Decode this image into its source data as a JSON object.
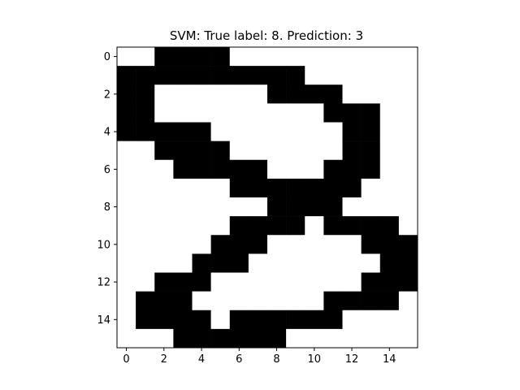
{
  "chart_data": {
    "type": "heatmap",
    "title": "SVM: True label: 8. Prediction: 3",
    "xlabel": "",
    "ylabel": "",
    "colormap": "binary",
    "colors": {
      "on": "#000000",
      "off": "#ffffff"
    },
    "grid": false,
    "xlim": [
      -0.5,
      15.5
    ],
    "ylim": [
      15.5,
      -0.5
    ],
    "x_ticks": [
      0,
      2,
      4,
      6,
      8,
      10,
      12,
      14
    ],
    "y_ticks": [
      0,
      2,
      4,
      6,
      8,
      10,
      12,
      14
    ],
    "rows": [
      [
        0,
        0,
        1,
        1,
        1,
        1,
        0,
        0,
        0,
        0,
        0,
        0,
        0,
        0,
        0,
        0
      ],
      [
        1,
        1,
        1,
        1,
        1,
        1,
        1,
        1,
        1,
        1,
        0,
        0,
        0,
        0,
        0,
        0
      ],
      [
        1,
        1,
        0,
        0,
        0,
        0,
        0,
        0,
        1,
        1,
        1,
        1,
        0,
        0,
        0,
        0
      ],
      [
        1,
        1,
        0,
        0,
        0,
        0,
        0,
        0,
        0,
        0,
        0,
        1,
        1,
        1,
        0,
        0
      ],
      [
        1,
        1,
        1,
        1,
        1,
        0,
        0,
        0,
        0,
        0,
        0,
        0,
        1,
        1,
        0,
        0
      ],
      [
        0,
        0,
        1,
        1,
        1,
        1,
        0,
        0,
        0,
        0,
        0,
        0,
        1,
        1,
        0,
        0
      ],
      [
        0,
        0,
        0,
        1,
        1,
        1,
        1,
        1,
        0,
        0,
        0,
        1,
        1,
        1,
        0,
        0
      ],
      [
        0,
        0,
        0,
        0,
        0,
        0,
        1,
        1,
        1,
        1,
        1,
        1,
        1,
        0,
        0,
        0
      ],
      [
        0,
        0,
        0,
        0,
        0,
        0,
        0,
        0,
        1,
        1,
        1,
        1,
        0,
        0,
        0,
        0
      ],
      [
        0,
        0,
        0,
        0,
        0,
        0,
        1,
        1,
        1,
        1,
        0,
        1,
        1,
        1,
        1,
        0
      ],
      [
        0,
        0,
        0,
        0,
        0,
        1,
        1,
        1,
        0,
        0,
        0,
        0,
        0,
        1,
        1,
        1
      ],
      [
        0,
        0,
        0,
        0,
        1,
        1,
        1,
        0,
        0,
        0,
        0,
        0,
        0,
        0,
        1,
        1
      ],
      [
        0,
        0,
        1,
        1,
        1,
        0,
        0,
        0,
        0,
        0,
        0,
        0,
        0,
        1,
        1,
        1
      ],
      [
        0,
        1,
        1,
        1,
        0,
        0,
        0,
        0,
        0,
        0,
        0,
        1,
        1,
        1,
        1,
        0
      ],
      [
        0,
        1,
        1,
        1,
        1,
        0,
        1,
        1,
        1,
        1,
        1,
        1,
        0,
        0,
        0,
        0
      ],
      [
        0,
        0,
        0,
        1,
        1,
        1,
        1,
        1,
        1,
        0,
        0,
        0,
        0,
        0,
        0,
        0
      ]
    ]
  }
}
